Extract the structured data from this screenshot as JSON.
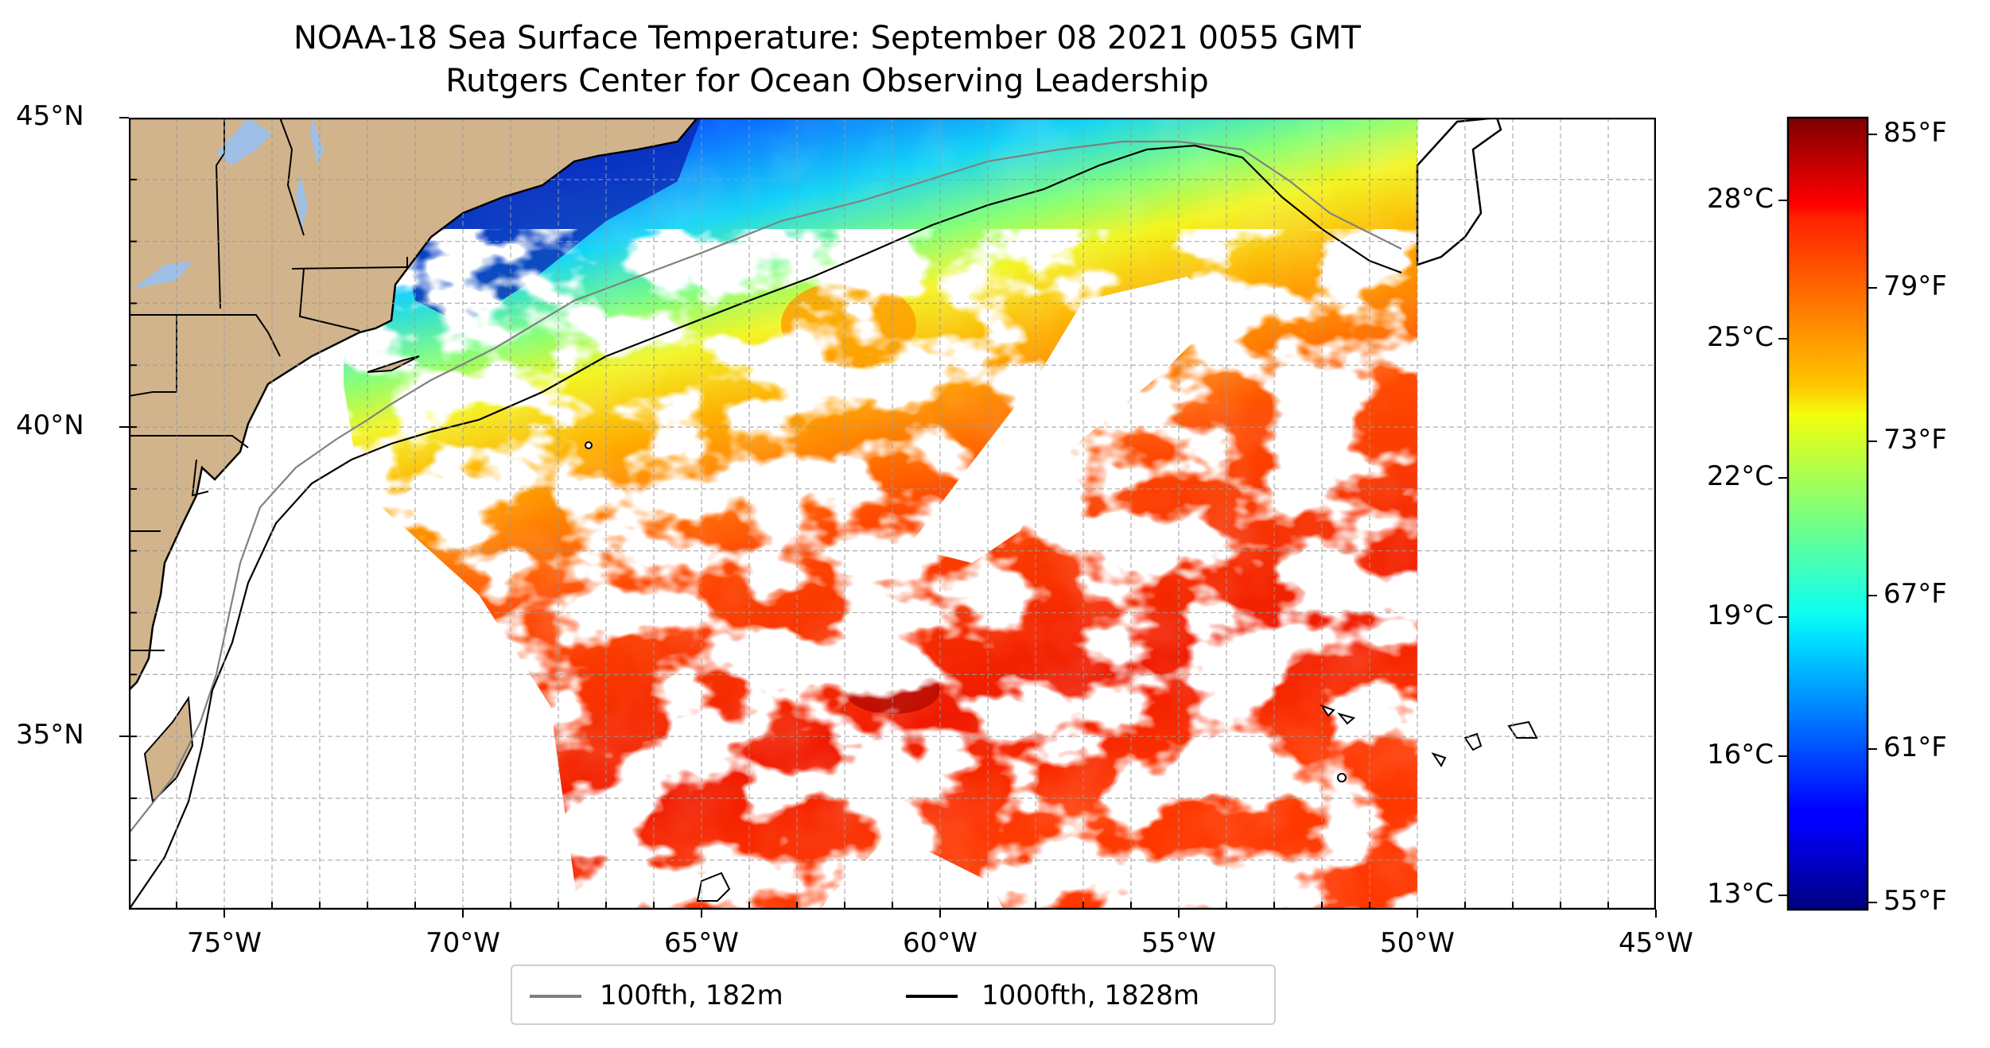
{
  "title": {
    "line1": "NOAA-18 Sea Surface Temperature: September 08 2021 0055 GMT",
    "line2": "Rutgers Center for Ocean Observing Leadership"
  },
  "map": {
    "lon_range": [
      -77,
      -45
    ],
    "lat_range": [
      32.2,
      45
    ],
    "lon_ticks": [
      "75°W",
      "70°W",
      "65°W",
      "60°W",
      "55°W",
      "50°W",
      "45°W"
    ],
    "lon_tick_values": [
      -75,
      -70,
      -65,
      -60,
      -55,
      -50,
      -45
    ],
    "lat_ticks": [
      "45°N",
      "40°N",
      "35°N"
    ],
    "lat_tick_values": [
      45,
      40,
      35
    ],
    "gridlines": true,
    "land_color": "#d2b48c",
    "lake_color": "#9fbfe6"
  },
  "legend": {
    "items": [
      {
        "label": "100fth, 182m",
        "color": "#808080"
      },
      {
        "label": "1000fth, 1828m",
        "color": "#000000"
      }
    ]
  },
  "colorbar": {
    "colormap": "jet",
    "left_ticks": [
      "28°C",
      "25°C",
      "22°C",
      "19°C",
      "16°C",
      "13°C"
    ],
    "right_ticks": [
      "85°F",
      "79°F",
      "73°F",
      "67°F",
      "61°F",
      "55°F"
    ]
  }
}
